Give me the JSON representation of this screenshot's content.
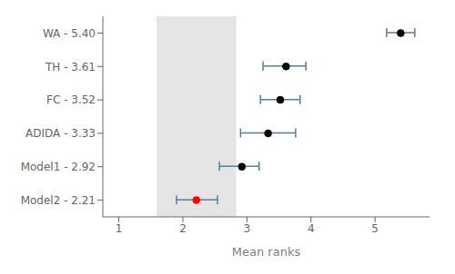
{
  "chart_data": {
    "type": "errorbar",
    "categories": [
      "WA - 5.40",
      "TH - 3.61",
      "FC - 3.52",
      "ADIDA - 3.33",
      "Model1 - 2.92",
      "Model2 - 2.21"
    ],
    "values": [
      5.4,
      3.61,
      3.52,
      3.33,
      2.92,
      2.21
    ],
    "ci_low": [
      5.18,
      3.25,
      3.21,
      2.9,
      2.57,
      1.9
    ],
    "ci_high": [
      5.62,
      3.92,
      3.83,
      3.76,
      3.19,
      2.54
    ],
    "colors": [
      "black",
      "black",
      "black",
      "black",
      "black",
      "red"
    ],
    "color": "#5080a0",
    "cd_band": [
      1.588,
      2.832
    ],
    "xlabel": "Mean ranks",
    "xlim": [
      0.75,
      5.85
    ],
    "xticks": [
      1,
      2,
      3,
      4,
      5
    ],
    "grid": false
  }
}
